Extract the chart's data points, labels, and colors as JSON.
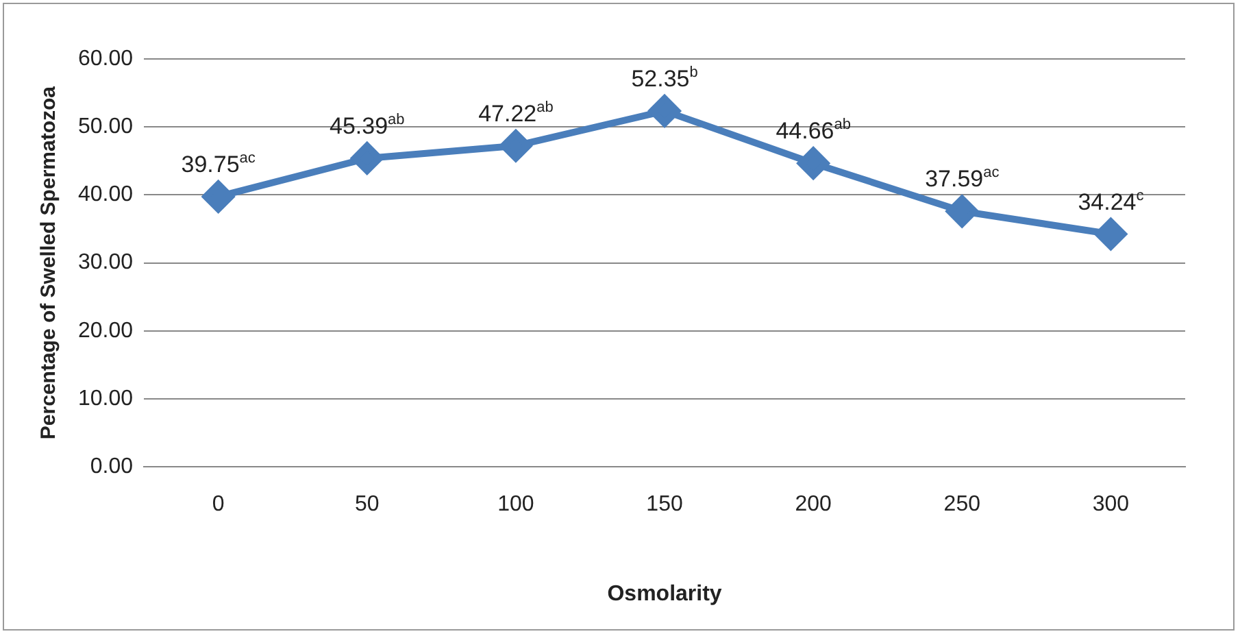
{
  "chart_data": {
    "type": "line",
    "xlabel": "Osmolarity",
    "ylabel": "Percentage of Swelled Spermatozoa",
    "categories": [
      "0",
      "50",
      "100",
      "150",
      "200",
      "250",
      "300"
    ],
    "series": [
      {
        "color": "#4a7ebb",
        "values": [
          39.75,
          45.39,
          47.22,
          52.35,
          44.66,
          37.59,
          34.24
        ],
        "value_labels": [
          "39.75$^{ac}$",
          "45.39$^{ab}$",
          "47.22$^{ab}$",
          "52.35$^{b}$",
          "44.66$^{ab}$",
          "37.59$^{ac}$",
          "34.24$^{c}$"
        ]
      }
    ],
    "ylim": [
      0,
      60
    ],
    "yticks": [
      {
        "value": 0,
        "label": "0.00"
      },
      {
        "value": 10,
        "label": "10.00"
      },
      {
        "value": 20,
        "label": "20.00"
      },
      {
        "value": 30,
        "label": "30.00"
      },
      {
        "value": 40,
        "label": "40.00"
      },
      {
        "value": 50,
        "label": "50.00"
      },
      {
        "value": 60,
        "label": "60.00"
      }
    ],
    "grid": "y",
    "legend": false,
    "marker": "diamond",
    "line_style": "solid"
  }
}
